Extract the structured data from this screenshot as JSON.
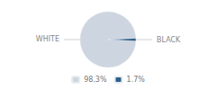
{
  "chart_data": {
    "type": "pie",
    "categories": [
      "WHITE",
      "BLACK"
    ],
    "values": [
      98.3,
      1.7
    ],
    "value_labels": [
      "98.3%",
      "1.7%"
    ],
    "colors": [
      "#cdd5e0",
      "#2e5f8a"
    ],
    "legend": "bottom"
  }
}
